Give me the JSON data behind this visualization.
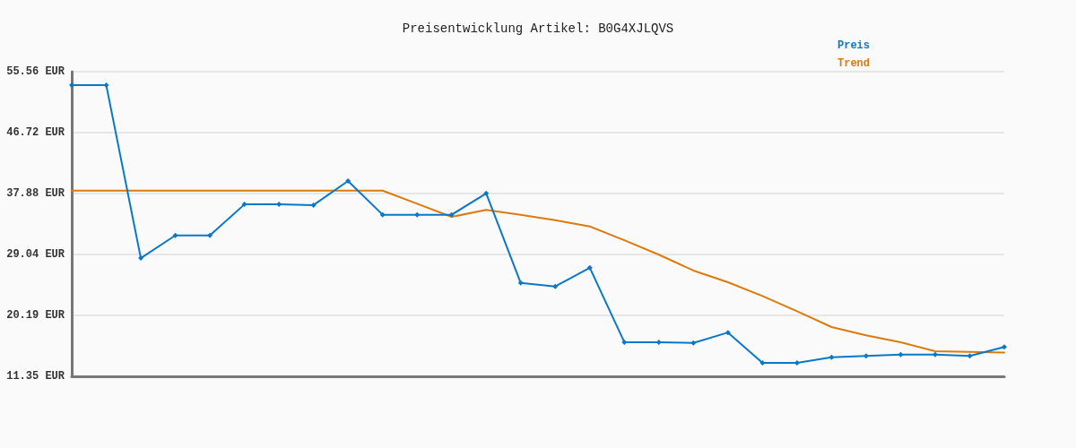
{
  "chart_data": {
    "type": "line",
    "title": "Preisentwicklung Artikel: B0G4XJLQVS",
    "categories": [
      null,
      null,
      null,
      null,
      null,
      null,
      null,
      null,
      null,
      null,
      null,
      null,
      null,
      null,
      null,
      null,
      null,
      null,
      null,
      null,
      null,
      null,
      null,
      null,
      null,
      null,
      null,
      null
    ],
    "series": [
      {
        "name": "Preis",
        "color": "#0a78c8",
        "marker": "diamond",
        "values": [
          53.6,
          53.6,
          28.5,
          31.8,
          31.8,
          36.3,
          36.3,
          36.2,
          39.7,
          34.8,
          34.8,
          34.8,
          37.9,
          24.9,
          24.4,
          27.1,
          16.3,
          16.3,
          16.2,
          17.7,
          13.3,
          13.3,
          14.1,
          14.3,
          14.5,
          14.5,
          14.3,
          15.6
        ]
      },
      {
        "name": "Trend",
        "color": "#dd7a0c",
        "marker": "none",
        "values": [
          38.3,
          38.3,
          38.3,
          38.3,
          38.3,
          38.3,
          38.3,
          38.3,
          38.3,
          38.3,
          36.4,
          34.5,
          35.5,
          34.8,
          34.0,
          33.1,
          31.1,
          29.0,
          26.7,
          25.0,
          23.0,
          20.8,
          18.5,
          17.3,
          16.3,
          15.0,
          14.9,
          14.8
        ]
      }
    ],
    "ylim": [
      11.35,
      55.56
    ],
    "yticks": [
      {
        "value": 11.35,
        "label": "11.35 EUR"
      },
      {
        "value": 20.19,
        "label": "20.19 EUR"
      },
      {
        "value": 29.04,
        "label": "29.04 EUR"
      },
      {
        "value": 37.88,
        "label": "37.88 EUR"
      },
      {
        "value": 46.72,
        "label": "46.72 EUR"
      },
      {
        "value": 55.56,
        "label": "55.56 EUR"
      }
    ],
    "grid": "y",
    "legend": "top right",
    "tick_labels": "y",
    "line_style": "solid"
  }
}
